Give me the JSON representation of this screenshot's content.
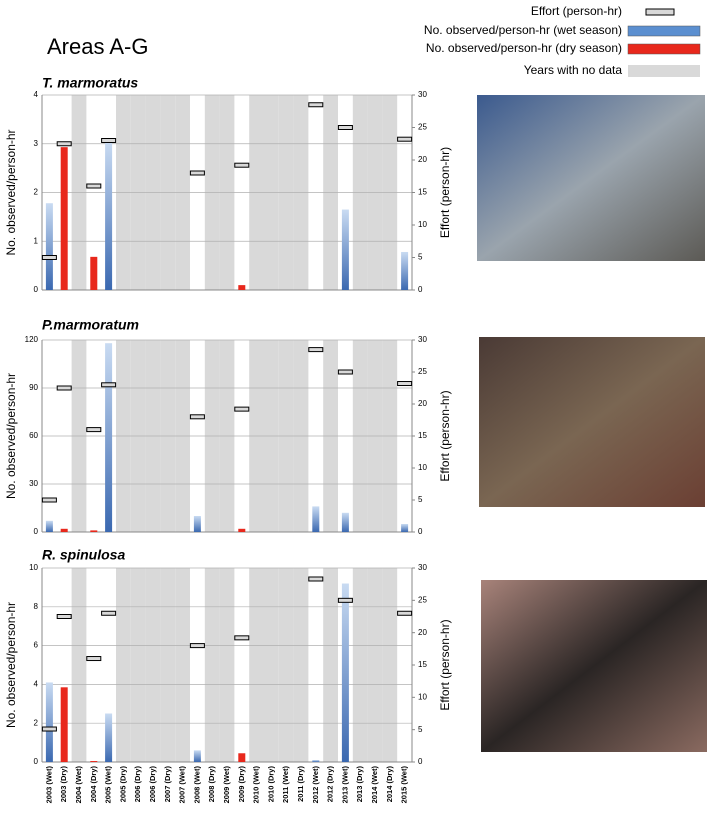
{
  "title": "Areas A-G",
  "legend": [
    {
      "name": "Effort (person-hr)",
      "color": "#d9d9d9"
    },
    {
      "name": "No. observed/person-hr (wet season)",
      "color": "#5b8fd0"
    },
    {
      "name": "No. observed/person-hr (dry  season)",
      "color": "#e8281c"
    },
    {
      "name": "Years with no data",
      "color": "#d9d9d9",
      "categories": [
        2,
        5,
        6,
        7,
        8,
        9,
        11,
        12,
        14,
        15,
        16,
        17,
        19,
        21,
        22,
        23
      ]
    }
  ],
  "categories": [
    "2003 (Wet)",
    "2003 (Dry)",
    "2004 (Wet)",
    "2004 (Dry)",
    "2005 (Wet)",
    "2005 (Dry)",
    "2006 (Dry)",
    "2006 (Dry)",
    "2007 (Dry)",
    "2007 (Wet)",
    "2008 (Wet)",
    "2008 (Dry)",
    "2009 (Wet)",
    "2009 (Dry)",
    "2010 (Wet)",
    "2010 (Dry)",
    "2011 (Wet)",
    "2011 (Dry)",
    "2012 (Wet)",
    "2012 (Dry)",
    "2013 (Wet)",
    "2013 (Dry)",
    "2014 (Wet)",
    "2014 (Dry)",
    "2015 (Wet)"
  ],
  "chart_data": [
    {
      "type": "bar",
      "title": "T. marmoratus",
      "ylabel": "No. observed/person-hr",
      "y2label": "Effort (person-hr)",
      "ylim": [
        0,
        4
      ],
      "yticks": [
        0,
        1,
        2,
        3,
        4
      ],
      "y2lim": [
        0,
        30
      ],
      "y2ticks": [
        0,
        5,
        10,
        15,
        20,
        25,
        30
      ],
      "grid": true,
      "wet": [
        1.78,
        null,
        null,
        null,
        3.05,
        null,
        null,
        null,
        null,
        null,
        0,
        null,
        null,
        null,
        null,
        null,
        null,
        null,
        0,
        null,
        1.65,
        null,
        null,
        null,
        0.78
      ],
      "dry": [
        null,
        2.93,
        null,
        0.68,
        null,
        null,
        null,
        null,
        null,
        null,
        null,
        null,
        null,
        0.1,
        null,
        null,
        null,
        null,
        null,
        null,
        null,
        null,
        null,
        null,
        null
      ],
      "effort": [
        5,
        22.5,
        null,
        16,
        23,
        null,
        null,
        null,
        null,
        null,
        18,
        null,
        null,
        19.2,
        null,
        null,
        null,
        null,
        28.5,
        null,
        25,
        null,
        null,
        null,
        23.2
      ]
    },
    {
      "type": "bar",
      "title": "P.marmoratum",
      "ylabel": "No. observed/person-hr",
      "y2label": "Effort (person-hr)",
      "ylim": [
        0,
        120
      ],
      "yticks": [
        0,
        30,
        60,
        90,
        120
      ],
      "y2lim": [
        0,
        30
      ],
      "y2ticks": [
        0,
        5,
        10,
        15,
        20,
        25,
        30
      ],
      "grid": true,
      "wet": [
        7,
        null,
        null,
        null,
        118,
        null,
        null,
        null,
        null,
        null,
        10,
        null,
        null,
        null,
        null,
        null,
        null,
        null,
        16,
        null,
        12,
        null,
        null,
        null,
        5
      ],
      "dry": [
        null,
        2,
        null,
        1,
        null,
        null,
        null,
        null,
        null,
        null,
        null,
        null,
        null,
        2,
        null,
        null,
        null,
        null,
        null,
        null,
        null,
        null,
        null,
        null,
        null
      ],
      "effort": [
        5,
        22.5,
        null,
        16,
        23,
        null,
        null,
        null,
        null,
        null,
        18,
        null,
        null,
        19.2,
        null,
        null,
        null,
        null,
        28.5,
        null,
        25,
        null,
        null,
        null,
        23.2
      ]
    },
    {
      "type": "bar",
      "title": "R. spinulosa",
      "ylabel": "No. observed/person-hr",
      "y2label": "Effort (person-hr)",
      "ylim": [
        0,
        10
      ],
      "yticks": [
        0,
        2,
        4,
        6,
        8,
        10
      ],
      "y2lim": [
        0,
        30
      ],
      "y2ticks": [
        0,
        5,
        10,
        15,
        20,
        25,
        30
      ],
      "grid": true,
      "wet": [
        4.1,
        null,
        null,
        null,
        2.5,
        null,
        null,
        null,
        null,
        null,
        0.6,
        null,
        null,
        null,
        null,
        null,
        null,
        null,
        0.1,
        null,
        9.2,
        null,
        null,
        null,
        0
      ],
      "dry": [
        null,
        3.85,
        null,
        0.05,
        null,
        null,
        null,
        null,
        null,
        null,
        null,
        null,
        null,
        0.45,
        null,
        null,
        null,
        null,
        null,
        null,
        null,
        null,
        null,
        null,
        null
      ],
      "effort": [
        5.1,
        22.5,
        null,
        16,
        23,
        null,
        null,
        null,
        null,
        null,
        18,
        null,
        null,
        19.2,
        null,
        null,
        null,
        null,
        28.3,
        null,
        25,
        null,
        null,
        null,
        23
      ]
    }
  ]
}
